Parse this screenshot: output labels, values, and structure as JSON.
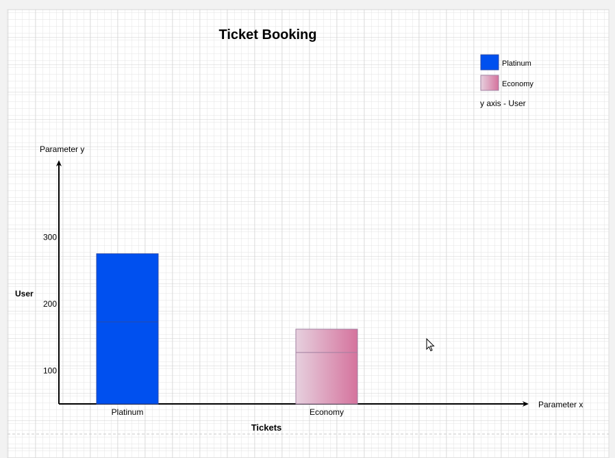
{
  "chart_data": {
    "type": "bar",
    "title": "Ticket Booking",
    "categories": [
      "Platinum",
      "Economy"
    ],
    "series": [
      {
        "name": "Platinum",
        "values": [
          275,
          null
        ],
        "inner_divider": 173
      },
      {
        "name": "Economy",
        "values": [
          null,
          162
        ],
        "inner_divider": 127
      }
    ],
    "xlabel": "Tickets",
    "ylabel": "User",
    "x_axis_caption": "Parameter x",
    "y_axis_caption": "Parameter y",
    "yticks": [
      100,
      200,
      300
    ],
    "legend": {
      "placement": "top-right",
      "items": [
        {
          "label": "Platinum",
          "color": "#0050ef"
        },
        {
          "label": "Economy",
          "color": "#e6d0de",
          "color2": "#d5739d"
        }
      ],
      "note": "y axis - User"
    },
    "grid": true
  },
  "colors": {
    "platinum": "#0050ef",
    "platinum_border": "#2a4aa8",
    "economy_light": "#e6d0de",
    "economy_dark": "#d5739d",
    "economy_border": "#a07fa0",
    "axis": "#000000",
    "grid_minor": "#e3e3e3",
    "grid_major": "#d0d0d0",
    "page": "#ffffff"
  }
}
